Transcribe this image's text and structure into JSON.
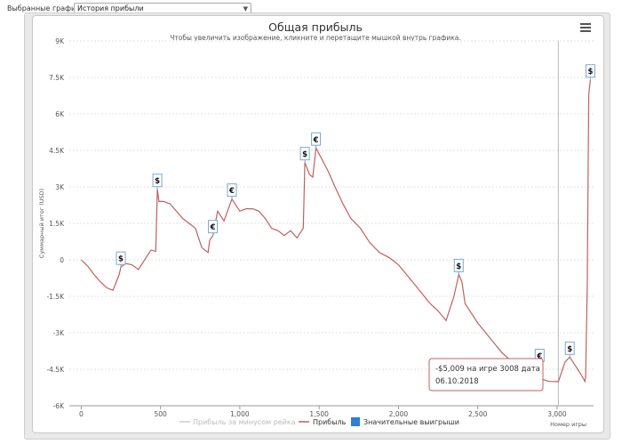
{
  "toolbar": {
    "label": "Выбранные графики:",
    "selected_chart": "История прибыли"
  },
  "menu": {
    "icon": "hamburger-menu-icon"
  },
  "chart_data": {
    "type": "line",
    "title": "Общая прибыль",
    "subtitle": "Чтобы увеличить изображение, кликните и перетащите мышкой внутрь графика.",
    "xlabel": "Номер игры",
    "ylabel": "Суммарный итог (USD)",
    "ylim": [
      -6000,
      9000
    ],
    "xlim": [
      -75,
      3230
    ],
    "y_ticks": [
      9000,
      7500,
      6000,
      4500,
      3000,
      1500,
      0,
      -1500,
      -3000,
      -4500,
      -6000
    ],
    "y_tick_labels": [
      "9K",
      "7.5K",
      "6K",
      "4.5K",
      "3K",
      "1.5K",
      "0",
      "-1.5K",
      "-3K",
      "-4.5K",
      "-6K"
    ],
    "x_ticks": [
      0,
      500,
      1000,
      1500,
      2000,
      2500,
      3000
    ],
    "x_tick_labels": [
      "0",
      "500",
      "1,000",
      "1,500",
      "2,000",
      "2,500",
      "3,000"
    ],
    "grid": true,
    "legend_position": "bottom",
    "legend": [
      {
        "name": "Прибыль за минусом рейка",
        "color": "#cccccc",
        "type": "line"
      },
      {
        "name": "Прибыль",
        "color": "#c06060",
        "type": "line"
      },
      {
        "name": "Значительные выигрыши",
        "color": "#2f7ed8",
        "type": "square"
      }
    ],
    "series": [
      {
        "name": "Прибыль",
        "color": "#c06060",
        "x": [
          0,
          40,
          80,
          120,
          160,
          200,
          240,
          250,
          280,
          320,
          360,
          400,
          440,
          470,
          480,
          490,
          520,
          560,
          600,
          640,
          680,
          720,
          760,
          800,
          810,
          830,
          860,
          900,
          950,
          980,
          1000,
          1040,
          1080,
          1120,
          1160,
          1200,
          1240,
          1280,
          1320,
          1360,
          1400,
          1410,
          1440,
          1460,
          1480,
          1520,
          1560,
          1600,
          1650,
          1700,
          1760,
          1820,
          1880,
          1940,
          2000,
          2050,
          2100,
          2150,
          2200,
          2250,
          2300,
          2350,
          2380,
          2400,
          2420,
          2460,
          2500,
          2550,
          2600,
          2650,
          2700,
          2750,
          2800,
          2850,
          2900,
          2950,
          3000,
          3008,
          3050,
          3080,
          3100,
          3150,
          3175,
          3180,
          3190,
          3200,
          3210
        ],
        "values": [
          0,
          -250,
          -600,
          -900,
          -1150,
          -1250,
          -600,
          -300,
          -150,
          -200,
          -400,
          0,
          400,
          350,
          2900,
          2400,
          2400,
          2300,
          2000,
          1700,
          1500,
          1300,
          500,
          300,
          800,
          1000,
          2000,
          1600,
          2500,
          2200,
          2000,
          2100,
          2100,
          2000,
          1700,
          1300,
          1200,
          1000,
          1200,
          900,
          1300,
          4000,
          3500,
          3400,
          4600,
          4100,
          3600,
          3000,
          2300,
          1700,
          1300,
          700,
          300,
          100,
          -200,
          -600,
          -1000,
          -1400,
          -1800,
          -2100,
          -2500,
          -1500,
          -600,
          -900,
          -1800,
          -2200,
          -2600,
          -3000,
          -3400,
          -3800,
          -4100,
          -4300,
          -4500,
          -4700,
          -4900,
          -5000,
          -5009,
          -5009,
          -4200,
          -4000,
          -4200,
          -4700,
          -5000,
          -4800,
          -1000,
          6800,
          7400
        ]
      }
    ],
    "markers": [
      {
        "symbol": "$",
        "x": 250,
        "y": -300
      },
      {
        "symbol": "$",
        "x": 480,
        "y": 2900
      },
      {
        "symbol": "€",
        "x": 830,
        "y": 1000
      },
      {
        "symbol": "€",
        "x": 950,
        "y": 2500
      },
      {
        "symbol": "$",
        "x": 1410,
        "y": 4000
      },
      {
        "symbol": "€",
        "x": 1480,
        "y": 4600
      },
      {
        "symbol": "$",
        "x": 2380,
        "y": -600
      },
      {
        "symbol": "€",
        "x": 2890,
        "y": -4300
      },
      {
        "symbol": "$",
        "x": 3080,
        "y": -4000
      },
      {
        "symbol": "$",
        "x": 3210,
        "y": 7400
      }
    ],
    "crosshair_x": 3008,
    "tooltip": {
      "line1": "-$5,009 на игре 3008 дата",
      "line2": "06.10.2018"
    }
  }
}
